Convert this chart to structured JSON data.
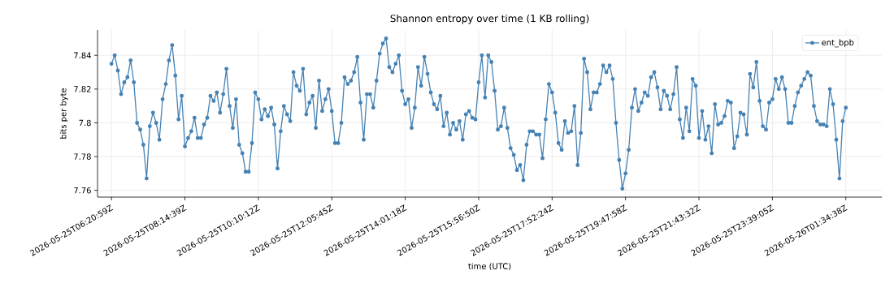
{
  "chart_data": {
    "type": "line",
    "title": "Shannon entropy over time (1 KB rolling)",
    "xlabel": "time (UTC)",
    "ylabel": "bits per byte",
    "categories": [
      "2026-05-25T06:20:59Z",
      null,
      null,
      null,
      null,
      null,
      null,
      null,
      null,
      null,
      null,
      null,
      null,
      null,
      null,
      null,
      null,
      null,
      null,
      null,
      null,
      null,
      null,
      "2026-05-25T08:14:39Z",
      null,
      null,
      null,
      null,
      null,
      null,
      null,
      null,
      null,
      null,
      null,
      null,
      null,
      null,
      null,
      null,
      null,
      null,
      null,
      null,
      null,
      null,
      "2026-05-25T10:10:12Z",
      null,
      null,
      null,
      null,
      null,
      null,
      null,
      null,
      null,
      null,
      null,
      null,
      null,
      null,
      null,
      null,
      null,
      null,
      null,
      null,
      null,
      null,
      "2026-05-25T12:05:45Z",
      null,
      null,
      null,
      null,
      null,
      null,
      null,
      null,
      null,
      null,
      null,
      null,
      null,
      null,
      null,
      null,
      null,
      null,
      null,
      null,
      null,
      null,
      "2026-05-25T14:01:18Z",
      null,
      null,
      null,
      null,
      null,
      null,
      null,
      null,
      null,
      null,
      null,
      null,
      null,
      null,
      null,
      null,
      null,
      null,
      null,
      null,
      null,
      null,
      "2026-05-25T15:56:50Z",
      null,
      null,
      null,
      null,
      null,
      null,
      null,
      null,
      null,
      null,
      null,
      null,
      null,
      null,
      null,
      null,
      null,
      null,
      null,
      null,
      null,
      null,
      "2026-05-25T17:52:24Z",
      null,
      null,
      null,
      null,
      null,
      null,
      null,
      null,
      null,
      null,
      null,
      null,
      null,
      null,
      null,
      null,
      null,
      null,
      null,
      null,
      null,
      null,
      "2026-05-25T19:47:58Z",
      null,
      null,
      null,
      null,
      null,
      null,
      null,
      null,
      null,
      null,
      null,
      null,
      null,
      null,
      null,
      null,
      null,
      null,
      null,
      null,
      null,
      null,
      "2026-05-25T21:43:32Z",
      null,
      null,
      null,
      null,
      null,
      null,
      null,
      null,
      null,
      null,
      null,
      null,
      null,
      null,
      null,
      null,
      null,
      null,
      null,
      null,
      null,
      null,
      "2026-05-25T23:39:05Z",
      null,
      null,
      null,
      null,
      null,
      null,
      null,
      null,
      null,
      null,
      null,
      null,
      null,
      null,
      null,
      null,
      null,
      null,
      null,
      null,
      null,
      null,
      "2026-05-26T01:34:38Z"
    ],
    "series": [
      {
        "name": "ent_bpb",
        "color": "#4682b4",
        "values": [
          7.835,
          7.84,
          7.831,
          7.817,
          7.824,
          7.827,
          7.837,
          7.824,
          7.8,
          7.796,
          7.787,
          7.767,
          7.798,
          7.806,
          7.8,
          7.79,
          7.814,
          7.823,
          7.837,
          7.846,
          7.828,
          7.802,
          7.816,
          7.786,
          7.791,
          7.795,
          7.803,
          7.791,
          7.791,
          7.799,
          7.803,
          7.816,
          7.813,
          7.818,
          7.806,
          7.817,
          7.832,
          7.81,
          7.797,
          7.814,
          7.787,
          7.782,
          7.771,
          7.771,
          7.788,
          7.818,
          7.814,
          7.802,
          7.808,
          7.804,
          7.809,
          7.799,
          7.773,
          7.795,
          7.81,
          7.805,
          7.801,
          7.83,
          7.822,
          7.819,
          7.832,
          7.805,
          7.812,
          7.816,
          7.797,
          7.825,
          7.807,
          7.814,
          7.82,
          7.807,
          7.788,
          7.788,
          7.8,
          7.827,
          7.823,
          7.825,
          7.83,
          7.839,
          7.812,
          7.79,
          7.817,
          7.817,
          7.809,
          7.825,
          7.841,
          7.847,
          7.85,
          7.833,
          7.83,
          7.835,
          7.84,
          7.819,
          7.811,
          7.814,
          7.797,
          7.809,
          7.833,
          7.822,
          7.839,
          7.829,
          7.818,
          7.811,
          7.808,
          7.816,
          7.798,
          7.806,
          7.793,
          7.8,
          7.796,
          7.801,
          7.79,
          7.805,
          7.807,
          7.803,
          7.802,
          7.824,
          7.84,
          7.815,
          7.84,
          7.836,
          7.819,
          7.796,
          7.798,
          7.809,
          7.797,
          7.785,
          7.781,
          7.772,
          7.775,
          7.766,
          7.787,
          7.795,
          7.795,
          7.793,
          7.793,
          7.779,
          7.802,
          7.823,
          7.818,
          7.806,
          7.788,
          7.784,
          7.801,
          7.794,
          7.795,
          7.81,
          7.775,
          7.794,
          7.838,
          7.83,
          7.808,
          7.818,
          7.818,
          7.823,
          7.834,
          7.83,
          7.834,
          7.826,
          7.8,
          7.778,
          7.761,
          7.77,
          7.784,
          7.809,
          7.82,
          7.807,
          7.812,
          7.818,
          7.816,
          7.827,
          7.83,
          7.821,
          7.808,
          7.819,
          7.816,
          7.808,
          7.817,
          7.833,
          7.802,
          7.791,
          7.809,
          7.795,
          7.826,
          7.822,
          7.791,
          7.807,
          7.79,
          7.798,
          7.782,
          7.811,
          7.799,
          7.8,
          7.804,
          7.813,
          7.812,
          7.785,
          7.792,
          7.806,
          7.805,
          7.793,
          7.829,
          7.821,
          7.836,
          7.813,
          7.798,
          7.796,
          7.812,
          7.814,
          7.826,
          7.82,
          7.827,
          7.82,
          7.8,
          7.8,
          7.81,
          7.818,
          7.822,
          7.826,
          7.83,
          7.828,
          7.81,
          7.801,
          7.799,
          7.799,
          7.798,
          7.82,
          7.811,
          7.79,
          7.767,
          7.801,
          7.809
        ]
      }
    ],
    "ylim": [
      7.756,
      7.855
    ],
    "yticks": [
      7.76,
      7.78,
      7.8,
      7.82,
      7.84
    ],
    "grid": true,
    "legend": "top right",
    "marker": "circle",
    "line_style": "solid"
  }
}
